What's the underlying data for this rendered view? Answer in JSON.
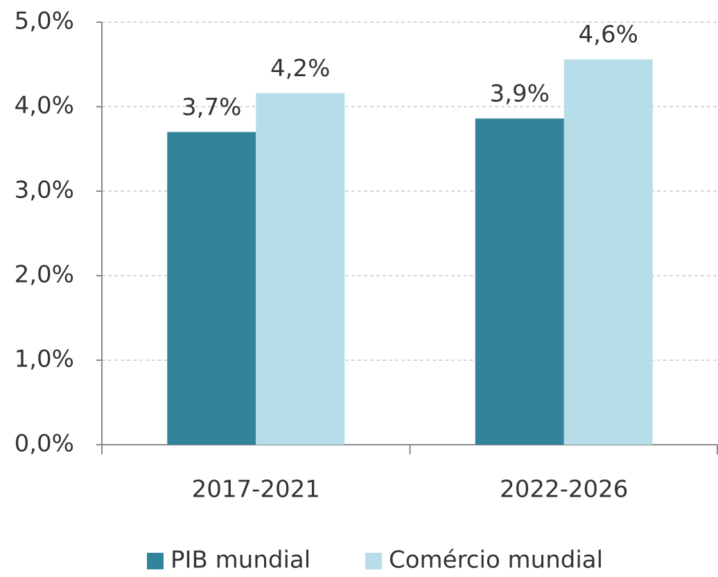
{
  "chart_data": {
    "type": "bar",
    "categories": [
      "2017-2021",
      "2022-2026"
    ],
    "series": [
      {
        "name": "PIB mundial",
        "color": "#31849b",
        "values": [
          3.7,
          3.86
        ],
        "value_labels": [
          "3,7%",
          "3,9%"
        ]
      },
      {
        "name": "Comércio mundial",
        "color": "#b7dde8",
        "values": [
          4.16,
          4.56
        ],
        "value_labels": [
          "4,2%",
          "4,6%"
        ]
      }
    ],
    "ylim": [
      0,
      5
    ],
    "yticks": [
      {
        "value": 0,
        "label": "0,0%"
      },
      {
        "value": 1,
        "label": "1,0%"
      },
      {
        "value": 2,
        "label": "2,0%"
      },
      {
        "value": 3,
        "label": "3,0%"
      },
      {
        "value": 4,
        "label": "4,0%"
      },
      {
        "value": 5,
        "label": "5,0%"
      }
    ],
    "grid": true,
    "legend": "bottom"
  }
}
